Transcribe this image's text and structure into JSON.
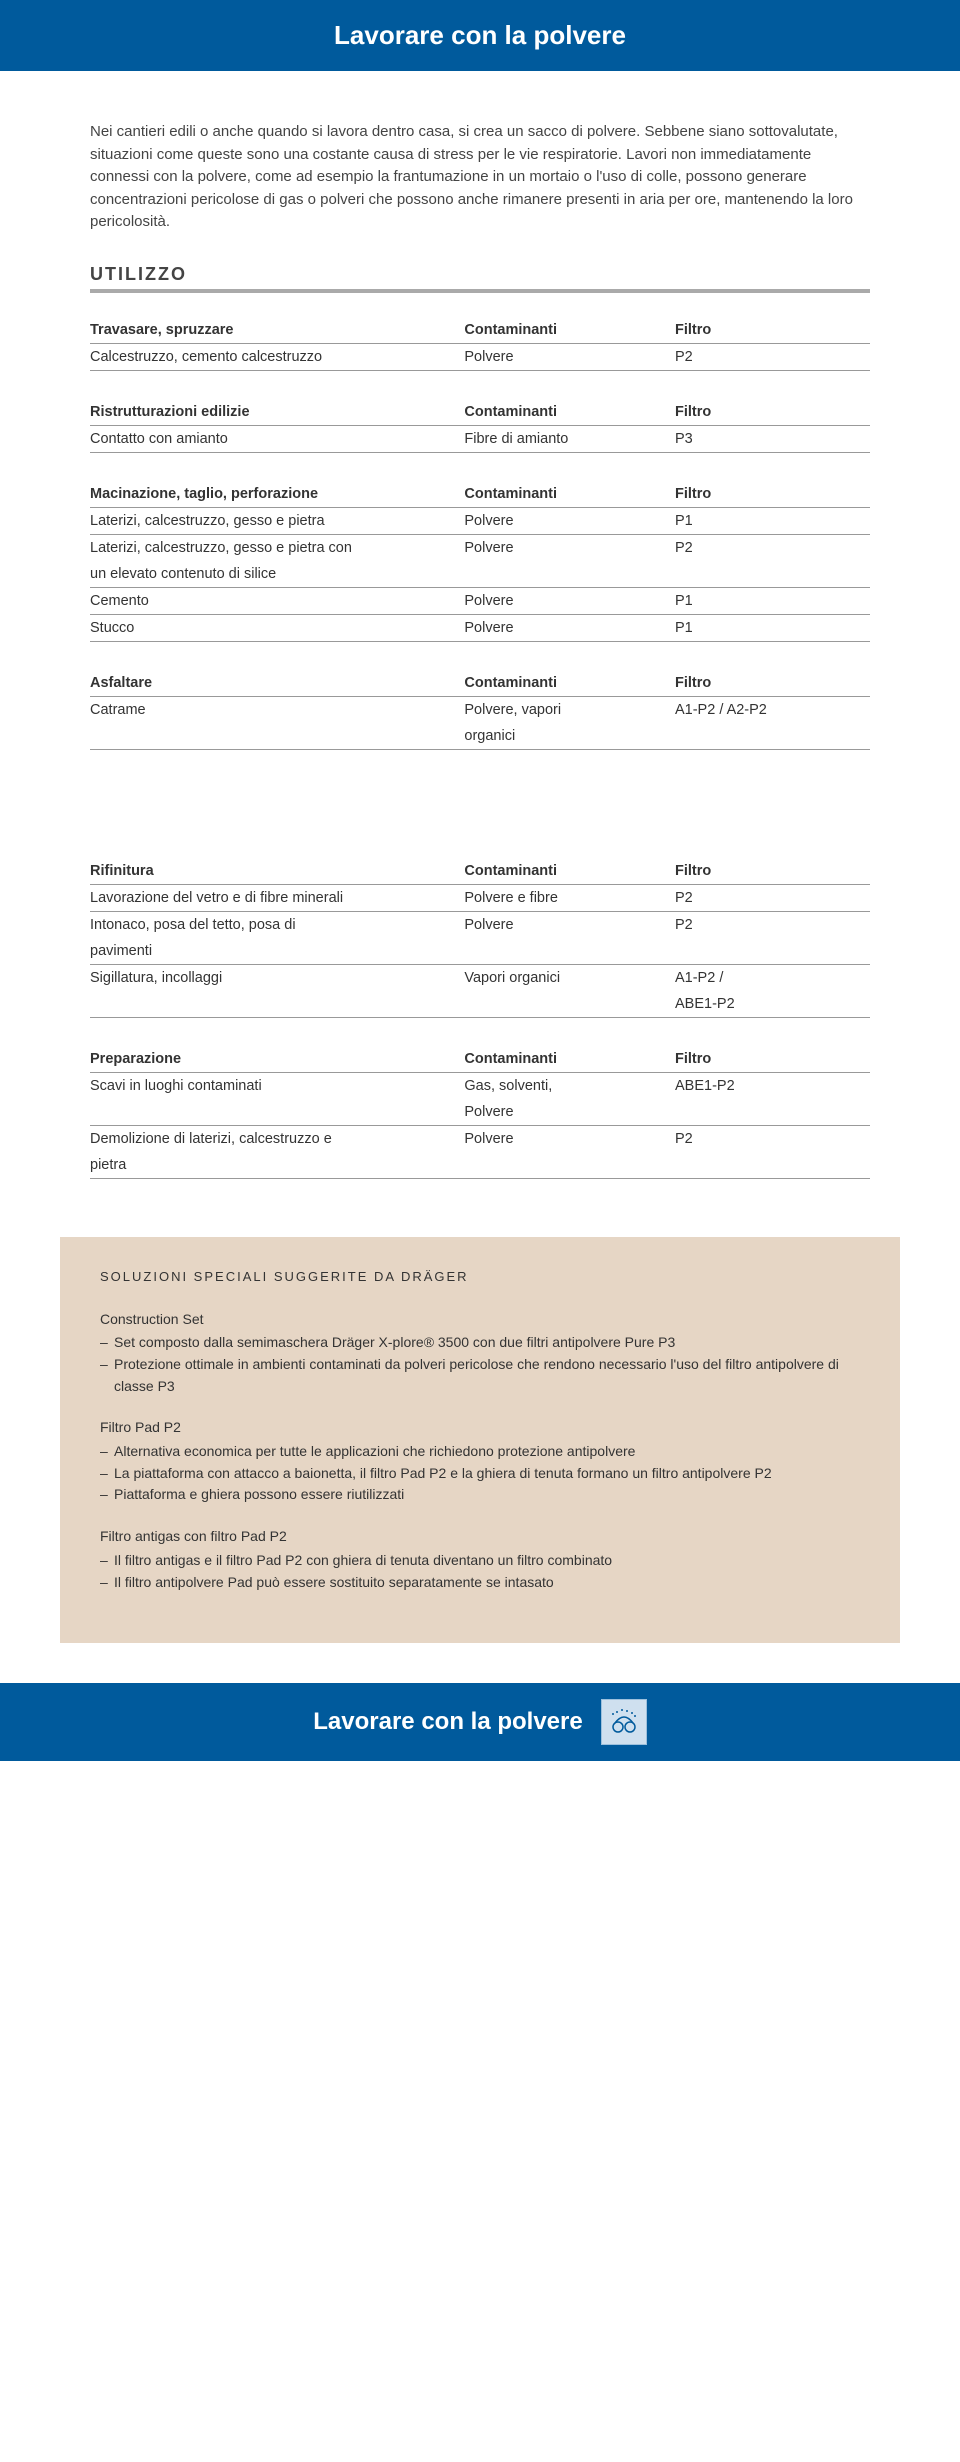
{
  "header": {
    "title": "Lavorare con la polvere"
  },
  "intro": "Nei cantieri edili o anche quando si lavora dentro casa, si crea un sacco di polvere. Sebbene siano sottovalutate, situazioni come queste sono una costante causa di stress per le vie respiratorie. Lavori non immediatamente connessi con la polvere, come ad esempio la frantumazione in un mortaio o l'uso di colle, possono generare concentrazioni pericolose di gas o polveri che possono anche rimanere presenti in aria per ore, mantenendo la loro pericolosità.",
  "utilizzo_label": "UTILIZZO",
  "col_headers": {
    "contaminanti": "Contaminanti",
    "filtro": "Filtro"
  },
  "tables": [
    {
      "header": "Travasare, spruzzare",
      "rows": [
        {
          "a": "Calcestruzzo, cemento calcestruzzo",
          "b": "Polvere",
          "c": "P2"
        }
      ]
    },
    {
      "header": "Ristrutturazioni edilizie",
      "rows": [
        {
          "a": "Contatto con amianto",
          "b": "Fibre di amianto",
          "c": "P3"
        }
      ]
    },
    {
      "header": "Macinazione, taglio, perforazione",
      "rows": [
        {
          "a": "Laterizi, calcestruzzo, gesso e pietra",
          "b": "Polvere",
          "c": "P1"
        },
        {
          "a": "Laterizi, calcestruzzo, gesso e pietra con un elevato contenuto di silice",
          "b": "Polvere",
          "c": "P2",
          "multiline": true
        },
        {
          "a": "Cemento",
          "b": "Polvere",
          "c": "P1"
        },
        {
          "a": "Stucco",
          "b": "Polvere",
          "c": "P1"
        }
      ]
    },
    {
      "header": "Asfaltare",
      "rows": [
        {
          "a": "Catrame",
          "b": "Polvere, vapori organici",
          "c": "A1-P2 / A2-P2",
          "multiline_b": true
        }
      ]
    },
    {
      "header": "Rifinitura",
      "rows": [
        {
          "a": "Lavorazione del vetro e di fibre minerali",
          "b": "Polvere e fibre",
          "c": "P2"
        },
        {
          "a": "Intonaco, posa del tetto, posa di pavimenti",
          "b": "Polvere",
          "c": "P2",
          "multiline": true
        },
        {
          "a": "Sigillatura, incollaggi",
          "b": "Vapori organici",
          "c": "A1-P2 / ABE1-P2",
          "multiline_c": true
        }
      ]
    },
    {
      "header": "Preparazione",
      "rows": [
        {
          "a": "Scavi in luoghi contaminati",
          "b": "Gas, solventi, Polvere",
          "c": "ABE1-P2",
          "multiline_b": true
        },
        {
          "a": "Demolizione di laterizi, calcestruzzo e pietra",
          "b": "Polvere",
          "c": "P2",
          "multiline": true
        }
      ]
    }
  ],
  "solutions": {
    "title": "SOLUZIONI SPECIALI SUGGERITE DA DRÄGER",
    "groups": [
      {
        "title": "Construction Set",
        "bullets": [
          "Set composto dalla semimaschera Dräger X-plore® 3500 con due filtri antipolvere Pure P3",
          "Protezione ottimale in ambienti contaminati da polveri pericolose che rendono necessario l'uso del filtro antipolvere di classe P3"
        ]
      },
      {
        "title": "Filtro Pad P2",
        "bullets": [
          "Alternativa economica per tutte le applicazioni che richiedono protezione antipolvere",
          "La piattaforma con attacco a baionetta, il filtro Pad P2 e la ghiera di tenuta formano un filtro antipolvere P2",
          "Piattaforma e ghiera possono essere riutilizzati"
        ]
      },
      {
        "title": "Filtro antigas con filtro Pad P2",
        "bullets": [
          "Il filtro antigas e il filtro Pad P2 con ghiera di tenuta diventano un filtro combinato",
          "Il filtro antipolvere Pad può essere sostituito separatamente se intasato"
        ]
      }
    ]
  },
  "footer": {
    "title": "Lavorare con la polvere"
  },
  "colors": {
    "brand_blue": "#005a9c",
    "panel_bg": "#e6d6c5",
    "rule": "#999999"
  }
}
